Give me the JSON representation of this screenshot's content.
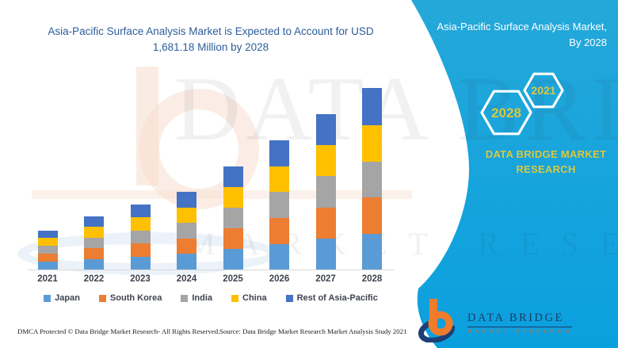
{
  "main": {
    "title": "Asia-Pacific Surface Analysis Market is Expected to Account for USD 1,681.18 Million by 2028",
    "footer_left": "DMCA Protected © Data Bridge Market Research- All Rights Reserved.",
    "footer_source": "Source: Data Bridge Market Research Market Analysis Study 2021"
  },
  "side_panel": {
    "title_line1": "Asia-Pacific Surface Analysis Market,",
    "title_line2": "By 2028",
    "hex_large_label": "2028",
    "hex_small_label": "2021",
    "brand_text": "DATA BRIDGE MARKET RESEARCH"
  },
  "logo": {
    "name": "DATA BRIDGE",
    "tagline": "MARKET RESEARCH"
  },
  "watermark": {
    "line1": "DATA BRIDGE",
    "line2": "MARKET RESEARCH"
  },
  "colors": {
    "accent_teal": "#0aa0de",
    "accent_teal_top": "#25a8da",
    "title_blue": "#2c5d9b",
    "hex_label_yellow": "#d9c83f",
    "logo_navy": "#203a66",
    "logo_orange": "#ee7c2b",
    "axis_text": "#3f4350"
  },
  "chart_data": {
    "type": "bar",
    "stacked": true,
    "title": "Asia-Pacific Surface Analysis Market is Expected to Account for USD 1,681.18 Million by 2028",
    "unit": "USD Million",
    "categories": [
      "2021",
      "2022",
      "2023",
      "2024",
      "2025",
      "2026",
      "2027",
      "2028"
    ],
    "series": [
      {
        "name": "Japan",
        "color": "#5B9BD5",
        "values": [
          74,
          99,
          121,
          145,
          190,
          238,
          287,
          333
        ]
      },
      {
        "name": "South Korea",
        "color": "#ED7D31",
        "values": [
          73,
          98,
          120,
          143,
          192,
          240,
          290,
          334
        ]
      },
      {
        "name": "India",
        "color": "#A5A5A5",
        "values": [
          71,
          98,
          121,
          144,
          191,
          240,
          288,
          336
        ]
      },
      {
        "name": "China",
        "color": "#FFC000",
        "values": [
          73,
          99,
          121,
          145,
          192,
          240,
          288,
          338
        ]
      },
      {
        "name": "Rest of Asia-Pacific",
        "color": "#4472C4",
        "values": [
          69,
          98,
          120,
          143,
          191,
          240,
          288,
          340.18
        ]
      }
    ],
    "totals": [
      360,
      492,
      603,
      720,
      956,
      1198,
      1441,
      1681.18
    ],
    "highlight_value_2028": "1,681.18",
    "xlabel": "",
    "ylabel": "",
    "gridlines": false,
    "legend_position": "bottom"
  }
}
